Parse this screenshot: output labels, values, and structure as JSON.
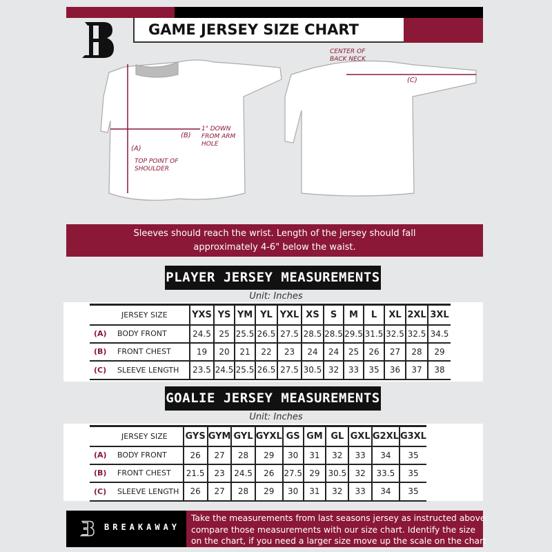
{
  "header": {
    "title": "GAME JERSEY SIZE CHART",
    "brand_letter": "B"
  },
  "colors": {
    "accent": "#8a1836",
    "dark": "#111111",
    "background": "#e6e7e8"
  },
  "diagram": {
    "a_label": "(A)",
    "a_desc": "TOP POINT OF SHOULDER",
    "b_label": "(B)",
    "b_desc": "1\" DOWN FROM ARM HOLE",
    "c_label": "(C)",
    "c_desc": "CENTER OF BACK NECK"
  },
  "banner": {
    "line1": "Sleeves should reach the wrist. Length of the jersey should fall",
    "line2": "approximately 4-6\" below the waist."
  },
  "player": {
    "heading": "PLAYER JERSEY MEASUREMENTS",
    "unit": "Unit: Inches",
    "size_label": "JERSEY SIZE",
    "sizes": [
      "YXS",
      "YS",
      "YM",
      "YL",
      "YXL",
      "XS",
      "S",
      "M",
      "L",
      "XL",
      "2XL",
      "3XL"
    ],
    "rows": [
      {
        "letter": "(A)",
        "name": "BODY FRONT",
        "values": [
          "24.5",
          "25",
          "25.5",
          "26.5",
          "27.5",
          "28.5",
          "28.5",
          "29.5",
          "31.5",
          "32.5",
          "32.5",
          "34.5"
        ]
      },
      {
        "letter": "(B)",
        "name": "FRONT CHEST",
        "values": [
          "19",
          "20",
          "21",
          "22",
          "23",
          "24",
          "24",
          "25",
          "26",
          "27",
          "28",
          "29"
        ]
      },
      {
        "letter": "(C)",
        "name": "SLEEVE LENGTH",
        "values": [
          "23.5",
          "24.5",
          "25.5",
          "26.5",
          "27.5",
          "30.5",
          "32",
          "33",
          "35",
          "36",
          "37",
          "38"
        ]
      }
    ]
  },
  "goalie": {
    "heading": "GOALIE JERSEY MEASUREMENTS",
    "unit": "Unit: Inches",
    "size_label": "JERSEY SIZE",
    "sizes": [
      "GYS",
      "GYM",
      "GYL",
      "GYXL",
      "GS",
      "GM",
      "GL",
      "GXL",
      "G2XL",
      "G3XL"
    ],
    "rows": [
      {
        "letter": "(A)",
        "name": "BODY FRONT",
        "values": [
          "26",
          "27",
          "28",
          "29",
          "30",
          "31",
          "32",
          "33",
          "34",
          "35"
        ]
      },
      {
        "letter": "(B)",
        "name": "FRONT CHEST",
        "values": [
          "21.5",
          "23",
          "24.5",
          "26",
          "27.5",
          "29",
          "30.5",
          "32",
          "33.5",
          "35"
        ]
      },
      {
        "letter": "(C)",
        "name": "SLEEVE LENGTH",
        "values": [
          "26",
          "27",
          "28",
          "29",
          "30",
          "31",
          "32",
          "33",
          "34",
          "35"
        ]
      }
    ]
  },
  "footer": {
    "brand": "BREAKAWAY",
    "line1": "Take the measurements from last seasons jersey as instructed above",
    "line2": "compare those measurements  with our size chart. Identify the size",
    "line3": "on the chart, if you need a larger size move up the scale on the chart"
  }
}
